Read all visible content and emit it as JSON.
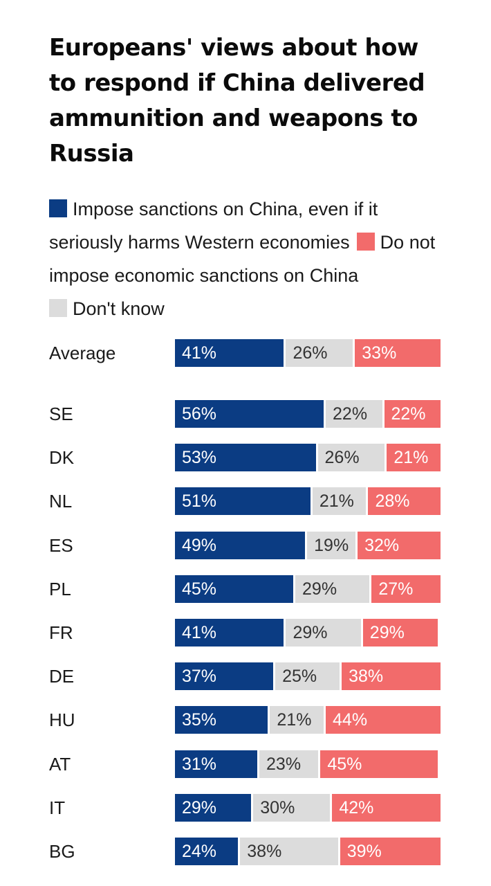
{
  "title": "Europeans' views about how to respond if China delivered ammunition and weapons to Russia",
  "legend": [
    {
      "label": "Impose sanctions on China, even if it seriously harms Western economies",
      "color": "#0b3c83"
    },
    {
      "label": "Do not impose economic sanctions on China",
      "color": "#f26b6b"
    },
    {
      "label": "Don't know",
      "color": "#dcdcdc"
    }
  ],
  "chart_data": {
    "type": "bar",
    "orientation": "horizontal",
    "stacked": true,
    "normalized_to": 100,
    "title": "Europeans' views about how to respond if China delivered ammunition and weapons to Russia",
    "categories": [
      "Average",
      "SE",
      "DK",
      "NL",
      "ES",
      "PL",
      "FR",
      "DE",
      "HU",
      "AT",
      "IT",
      "BG"
    ],
    "series_order": [
      "Impose sanctions on China, even if it seriously harms Western economies",
      "Don't know",
      "Do not impose economic sanctions on China"
    ],
    "series": [
      {
        "name": "Impose sanctions on China, even if it seriously harms Western economies",
        "color": "#0b3c83",
        "values": [
          41,
          56,
          53,
          51,
          49,
          45,
          41,
          37,
          35,
          31,
          29,
          24
        ]
      },
      {
        "name": "Don't know",
        "color": "#dcdcdc",
        "values": [
          26,
          22,
          26,
          21,
          19,
          29,
          29,
          25,
          21,
          23,
          30,
          38
        ]
      },
      {
        "name": "Do not impose economic sanctions on China",
        "color": "#f26b6b",
        "values": [
          33,
          22,
          21,
          28,
          32,
          27,
          29,
          38,
          44,
          45,
          42,
          39
        ]
      }
    ],
    "value_format": "{v}%",
    "legend_position": "top",
    "grid": false
  }
}
